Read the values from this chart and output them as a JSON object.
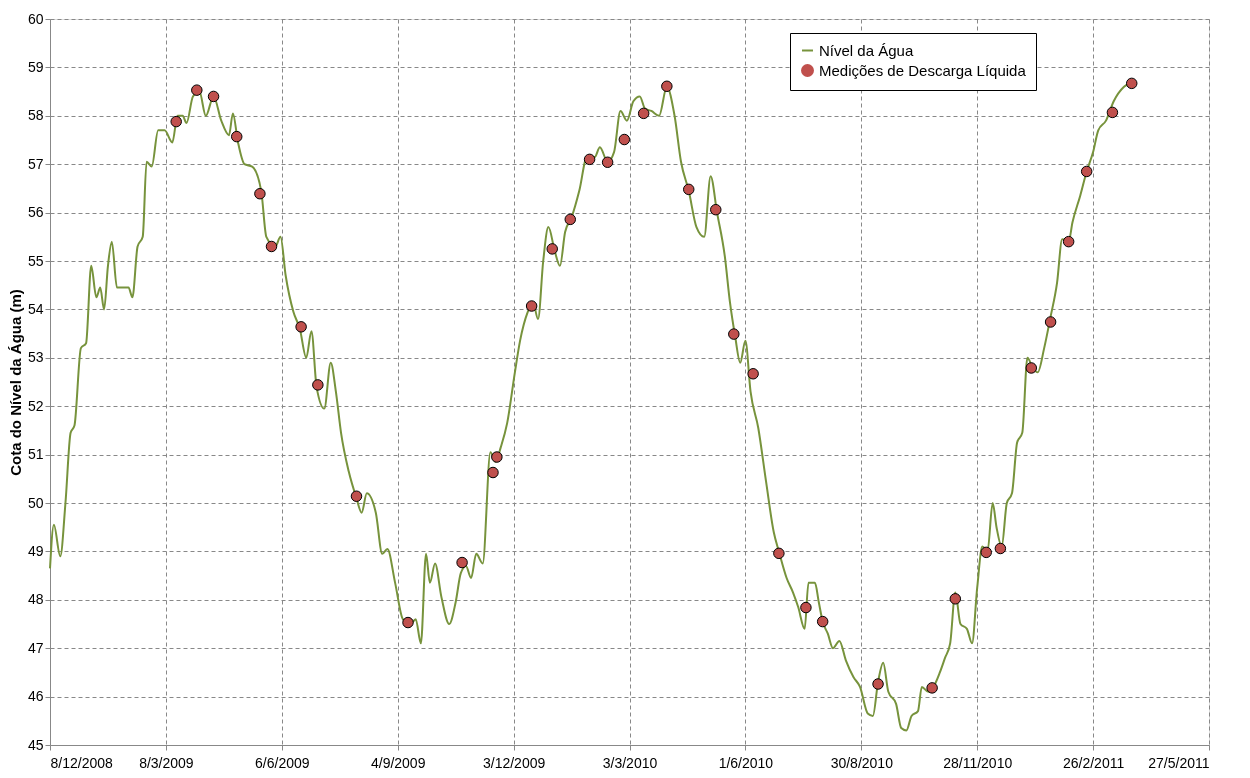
{
  "chart_data": {
    "type": "line",
    "ylabel": "Cota do Nível da Água (m)",
    "xlim": [
      "2008-12-08",
      "2011-05-27"
    ],
    "xticks": [
      {
        "value": "2008-12-08",
        "label": "8/12/2008"
      },
      {
        "value": "2009-03-08",
        "label": "8/3/2009"
      },
      {
        "value": "2009-06-06",
        "label": "6/6/2009"
      },
      {
        "value": "2009-09-04",
        "label": "4/9/2009"
      },
      {
        "value": "2009-12-03",
        "label": "3/12/2009"
      },
      {
        "value": "2010-03-03",
        "label": "3/3/2010"
      },
      {
        "value": "2010-06-01",
        "label": "1/6/2010"
      },
      {
        "value": "2010-08-30",
        "label": "30/8/2010"
      },
      {
        "value": "2010-11-28",
        "label": "28/11/2010"
      },
      {
        "value": "2011-02-26",
        "label": "26/2/2011"
      },
      {
        "value": "2011-05-27",
        "label": "27/5/2011"
      }
    ],
    "ylim": [
      45,
      60
    ],
    "yticks": [
      45,
      46,
      47,
      48,
      49,
      50,
      51,
      52,
      53,
      54,
      55,
      56,
      57,
      58,
      59,
      60
    ],
    "grid": true,
    "legend": "top right",
    "line_style": "solid",
    "series": [
      {
        "name": "Nível da Água",
        "color": "#77933c",
        "x": [
          "2008-12-08",
          "2008-12-11",
          "2008-12-16",
          "2008-12-20",
          "2008-12-24",
          "2008-12-27",
          "2009-01-01",
          "2009-01-05",
          "2009-01-09",
          "2009-01-13",
          "2009-01-16",
          "2009-01-19",
          "2009-01-22",
          "2009-01-25",
          "2009-01-29",
          "2009-02-03",
          "2009-02-07",
          "2009-02-10",
          "2009-02-14",
          "2009-02-18",
          "2009-02-21",
          "2009-02-25",
          "2009-03-02",
          "2009-03-07",
          "2009-03-13",
          "2009-03-17",
          "2009-03-21",
          "2009-03-24",
          "2009-03-29",
          "2009-04-03",
          "2009-04-08",
          "2009-04-14",
          "2009-04-20",
          "2009-04-26",
          "2009-04-29",
          "2009-05-03",
          "2009-05-08",
          "2009-05-14",
          "2009-05-21",
          "2009-05-25",
          "2009-06-01",
          "2009-06-05",
          "2009-06-09",
          "2009-06-15",
          "2009-06-20",
          "2009-06-25",
          "2009-06-29",
          "2009-07-03",
          "2009-07-09",
          "2009-07-14",
          "2009-07-18",
          "2009-07-22",
          "2009-07-28",
          "2009-08-03",
          "2009-08-07",
          "2009-08-11",
          "2009-08-18",
          "2009-08-23",
          "2009-08-27",
          "2009-09-02",
          "2009-09-08",
          "2009-09-14",
          "2009-09-18",
          "2009-09-22",
          "2009-09-26",
          "2009-09-29",
          "2009-10-03",
          "2009-10-08",
          "2009-10-14",
          "2009-10-19",
          "2009-10-23",
          "2009-10-27",
          "2009-10-31",
          "2009-11-04",
          "2009-11-09",
          "2009-11-15",
          "2009-11-19",
          "2009-11-23",
          "2009-11-28",
          "2009-12-04",
          "2009-12-08",
          "2009-12-14",
          "2009-12-18",
          "2009-12-22",
          "2009-12-26",
          "2009-12-30",
          "2010-01-04",
          "2010-01-08",
          "2010-01-12",
          "2010-01-17",
          "2010-01-23",
          "2010-01-29",
          "2010-02-04",
          "2010-02-08",
          "2010-02-14",
          "2010-02-19",
          "2010-02-24",
          "2010-03-01",
          "2010-03-06",
          "2010-03-11",
          "2010-03-15",
          "2010-03-20",
          "2010-03-26",
          "2010-04-01",
          "2010-04-07",
          "2010-04-12",
          "2010-04-18",
          "2010-04-24",
          "2010-04-30",
          "2010-05-05",
          "2010-05-10",
          "2010-05-16",
          "2010-05-20",
          "2010-05-24",
          "2010-05-28",
          "2010-06-01",
          "2010-06-05",
          "2010-06-11",
          "2010-06-17",
          "2010-06-23",
          "2010-06-27",
          "2010-07-03",
          "2010-07-08",
          "2010-07-12",
          "2010-07-17",
          "2010-07-20",
          "2010-07-25",
          "2010-07-28",
          "2010-07-31",
          "2010-08-04",
          "2010-08-08",
          "2010-08-13",
          "2010-08-18",
          "2010-08-24",
          "2010-08-29",
          "2010-09-04",
          "2010-09-08",
          "2010-09-12",
          "2010-09-16",
          "2010-09-20",
          "2010-09-26",
          "2010-09-30",
          "2010-10-04",
          "2010-10-08",
          "2010-10-13",
          "2010-10-16",
          "2010-10-21",
          "2010-10-25",
          "2010-10-30",
          "2010-11-03",
          "2010-11-07",
          "2010-11-11",
          "2010-11-15",
          "2010-11-20",
          "2010-11-24",
          "2010-11-28",
          "2010-12-02",
          "2010-12-06",
          "2010-12-10",
          "2010-12-13",
          "2010-12-17",
          "2010-12-21",
          "2010-12-25",
          "2010-12-29",
          "2011-01-02",
          "2011-01-06",
          "2011-01-10",
          "2011-01-14",
          "2011-01-19",
          "2011-01-24",
          "2011-01-29",
          "2011-02-02",
          "2011-02-07",
          "2011-02-10",
          "2011-02-16",
          "2011-02-21",
          "2011-02-26",
          "2011-03-02",
          "2011-03-08",
          "2011-03-14",
          "2011-03-22",
          "2011-03-30"
        ],
        "values": [
          48.65,
          49.55,
          48.9,
          50.0,
          51.45,
          51.6,
          53.2,
          53.3,
          54.9,
          54.25,
          54.45,
          54.0,
          54.9,
          55.4,
          54.45,
          54.45,
          54.45,
          54.25,
          55.3,
          55.5,
          57.05,
          56.95,
          57.7,
          57.7,
          57.45,
          58.0,
          58.0,
          57.85,
          58.4,
          58.5,
          58.0,
          58.4,
          57.9,
          57.6,
          58.05,
          57.45,
          57.0,
          56.95,
          56.45,
          55.5,
          55.3,
          55.5,
          54.7,
          53.95,
          53.6,
          53.0,
          53.55,
          52.4,
          51.95,
          52.9,
          52.3,
          51.45,
          50.65,
          50.1,
          49.8,
          50.2,
          49.8,
          48.95,
          49.05,
          48.35,
          47.6,
          47.5,
          47.6,
          47.1,
          48.95,
          48.35,
          48.75,
          48.05,
          47.5,
          47.95,
          48.55,
          48.7,
          48.45,
          48.95,
          48.75,
          51.05,
          50.85,
          51.15,
          51.65,
          52.7,
          53.35,
          53.95,
          54.15,
          53.8,
          55.0,
          55.7,
          55.2,
          54.9,
          55.6,
          55.9,
          56.45,
          57.15,
          57.15,
          57.35,
          57.05,
          57.25,
          58.1,
          57.9,
          58.3,
          58.4,
          58.15,
          58.1,
          58.0,
          58.6,
          58.0,
          57.05,
          56.45,
          55.7,
          55.5,
          56.75,
          56.0,
          55.1,
          54.15,
          53.45,
          52.9,
          53.35,
          52.3,
          51.55,
          50.45,
          49.4,
          49.0,
          48.45,
          48.15,
          47.85,
          47.4,
          48.35,
          48.35,
          47.95,
          47.55,
          47.3,
          47.0,
          47.15,
          46.75,
          46.4,
          46.2,
          45.65,
          45.6,
          46.3,
          46.7,
          46.1,
          45.85,
          45.35,
          45.3,
          45.6,
          45.7,
          46.2,
          46.1,
          46.2,
          46.5,
          46.8,
          47.1,
          48.15,
          47.5,
          47.4,
          47.1,
          48.25,
          49.1,
          49.0,
          50.0,
          49.5,
          49.1,
          50.0,
          50.2,
          51.25,
          51.45,
          53.0,
          52.8,
          52.7,
          53.2,
          53.85,
          54.55,
          55.45,
          55.4,
          55.8,
          56.35,
          56.85,
          57.25,
          57.7,
          57.9,
          58.3,
          58.6,
          58.7
        ]
      },
      {
        "name": "Medições de Descarga Líquida",
        "type": "scatter",
        "marker": "circle",
        "color": "#c0504d",
        "x": [
          "2009-03-16",
          "2009-04-01",
          "2009-04-14",
          "2009-05-02",
          "2009-05-20",
          "2009-05-29",
          "2009-06-21",
          "2009-07-04",
          "2009-08-03",
          "2009-09-12",
          "2009-10-24",
          "2009-11-17",
          "2009-11-20",
          "2009-12-17",
          "2010-01-02",
          "2010-01-16",
          "2010-01-31",
          "2010-02-14",
          "2010-02-27",
          "2010-03-14",
          "2010-04-01",
          "2010-04-18",
          "2010-05-09",
          "2010-05-23",
          "2010-06-07",
          "2010-06-27",
          "2010-07-18",
          "2010-07-31",
          "2010-09-12",
          "2010-10-24",
          "2010-11-11",
          "2010-12-05",
          "2010-12-16",
          "2011-01-09",
          "2011-01-24",
          "2011-02-07",
          "2011-02-21",
          "2011-03-13",
          "2011-03-28"
        ],
        "values": [
          57.88,
          58.53,
          58.4,
          57.57,
          56.39,
          55.3,
          53.64,
          52.44,
          50.14,
          47.53,
          48.77,
          50.63,
          50.95,
          54.07,
          55.25,
          55.86,
          57.1,
          57.04,
          57.51,
          58.05,
          58.61,
          56.48,
          56.06,
          53.49,
          52.67,
          48.96,
          47.84,
          47.55,
          46.26,
          46.18,
          48.02,
          48.98,
          49.06,
          52.79,
          53.74,
          55.4,
          56.85,
          58.07,
          58.67
        ]
      }
    ]
  }
}
